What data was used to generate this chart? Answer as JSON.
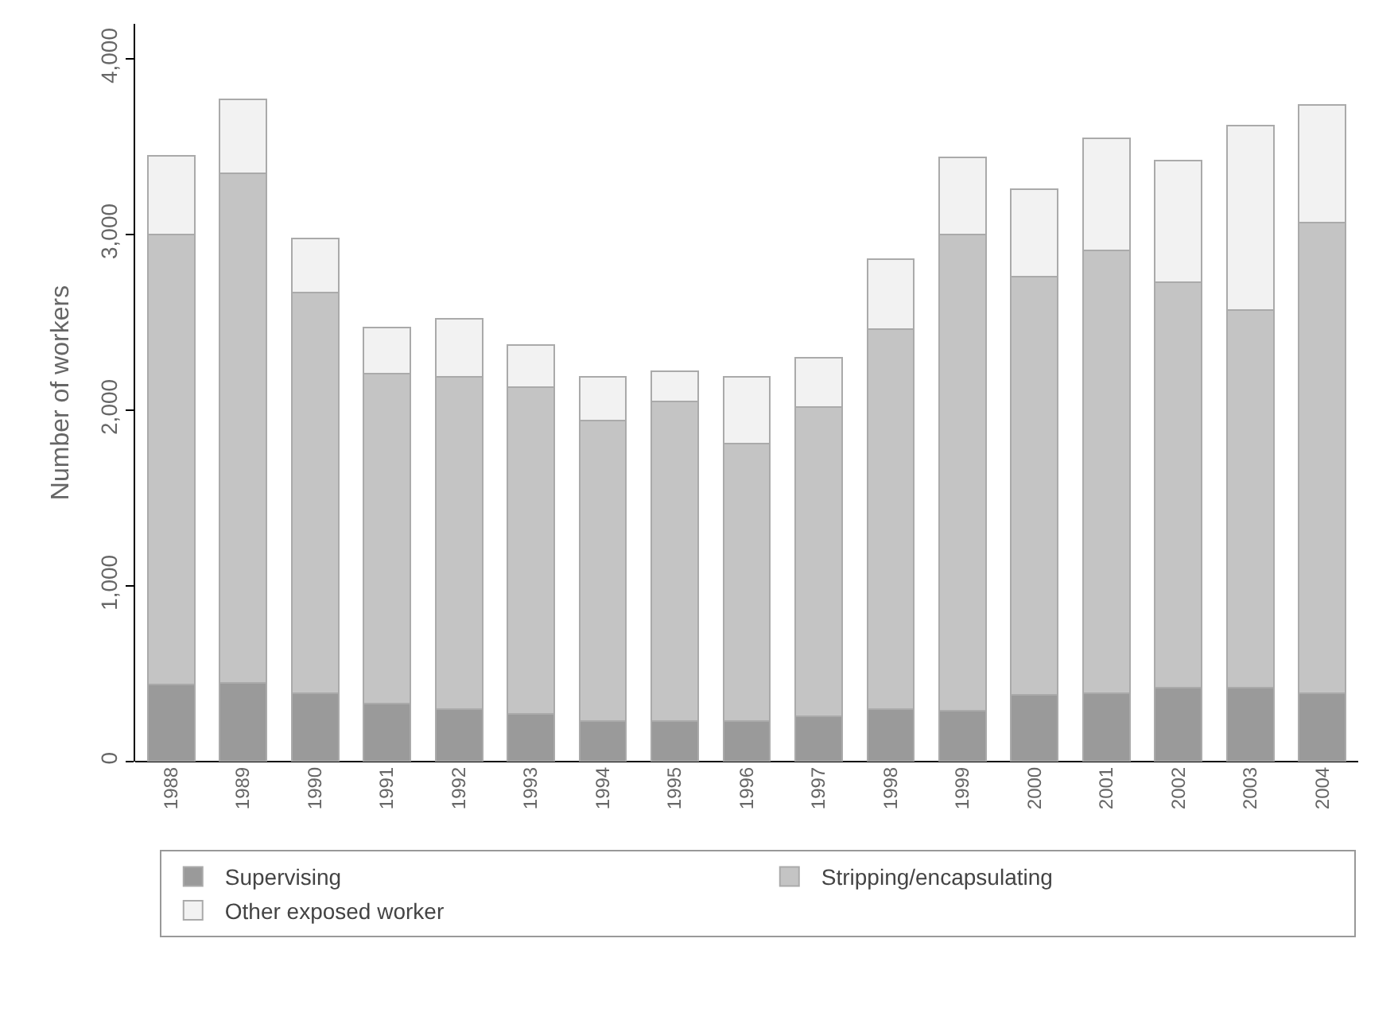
{
  "chart_data": {
    "type": "bar",
    "stacked": true,
    "ylabel": "Number of workers",
    "categories": [
      "1988",
      "1989",
      "1990",
      "1991",
      "1992",
      "1993",
      "1994",
      "1995",
      "1996",
      "1997",
      "1998",
      "1999",
      "2000",
      "2001",
      "2002",
      "2003",
      "2004"
    ],
    "series": [
      {
        "name": "Supervising",
        "color": "#9a9a9a",
        "values": [
          440,
          450,
          390,
          330,
          300,
          270,
          230,
          230,
          230,
          260,
          300,
          290,
          380,
          390,
          420,
          420,
          390
        ]
      },
      {
        "name": "Stripping/encapsulating",
        "color": "#c4c4c4",
        "values": [
          2560,
          2900,
          2280,
          1880,
          1890,
          1860,
          1710,
          1820,
          1580,
          1760,
          2160,
          2710,
          2380,
          2520,
          2310,
          2150,
          2680
        ]
      },
      {
        "name": "Other exposed worker",
        "color": "#f2f2f2",
        "values": [
          450,
          420,
          310,
          260,
          330,
          240,
          250,
          170,
          380,
          280,
          400,
          440,
          500,
          640,
          690,
          1050,
          670
        ]
      }
    ],
    "ylim": [
      0,
      4200
    ],
    "yticks": [
      {
        "value": 0,
        "label": "0"
      },
      {
        "value": 1000,
        "label": "1,000"
      },
      {
        "value": 2000,
        "label": "2,000"
      },
      {
        "value": 3000,
        "label": "3,000"
      },
      {
        "value": 4000,
        "label": "4,000"
      }
    ],
    "grid": false,
    "legend": "bottom"
  }
}
